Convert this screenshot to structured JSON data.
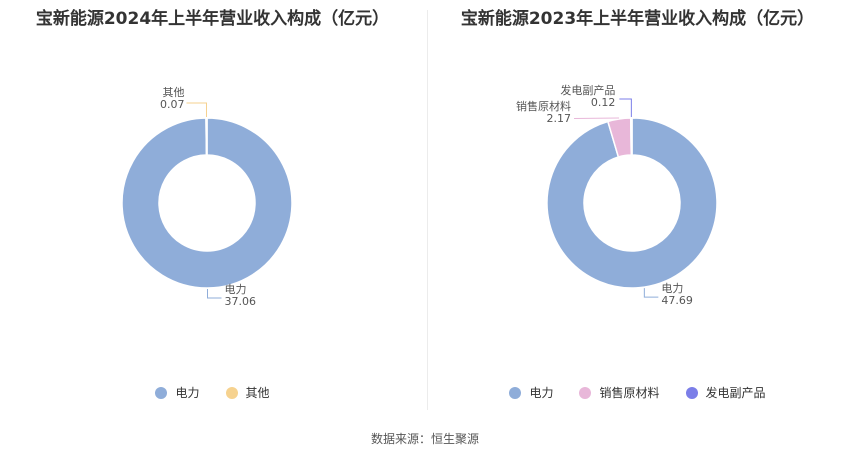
{
  "chart_data": [
    {
      "type": "pie",
      "variant": "donut",
      "title": "宝新能源2024年上半年营业收入构成（亿元）",
      "categories": [
        "电力",
        "其他"
      ],
      "values": [
        37.06,
        0.07
      ],
      "value_labels": [
        "37.06",
        "0.07"
      ],
      "colors": [
        "#8fadd9",
        "#f6d28f"
      ],
      "legend_placement": "bottom"
    },
    {
      "type": "pie",
      "variant": "donut",
      "title": "宝新能源2023年上半年营业收入构成（亿元）",
      "categories": [
        "电力",
        "销售原材料",
        "发电副产品"
      ],
      "values": [
        47.69,
        2.17,
        0.12
      ],
      "value_labels": [
        "47.69",
        "2.17",
        "0.12"
      ],
      "colors": [
        "#8fadd9",
        "#e8b7d9",
        "#7b7ee8"
      ],
      "legend_placement": "bottom"
    }
  ],
  "footer": {
    "source": "数据来源：恒生聚源"
  }
}
